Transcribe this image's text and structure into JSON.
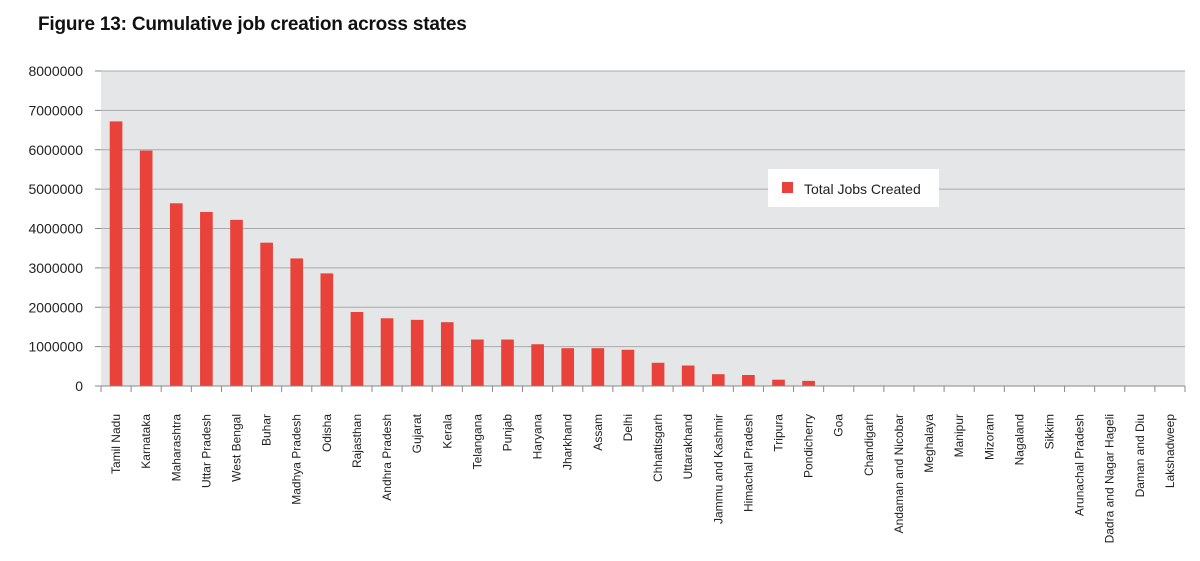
{
  "chart_data": {
    "type": "bar",
    "title": "Figure 13: Cumulative job creation across states",
    "xlabel": "",
    "ylabel": "",
    "ylim": [
      0,
      8000000
    ],
    "yticks": [
      0,
      1000000,
      2000000,
      3000000,
      4000000,
      5000000,
      6000000,
      7000000,
      8000000
    ],
    "grid": true,
    "legend_position": "right-center",
    "colors": {
      "bar": "#e8423a",
      "plot_bg": "#e5e6e8",
      "grid": "#aaaaaa"
    },
    "categories": [
      "Tamil Nadu",
      "Karnataka",
      "Maharashtra",
      "Uttar Pradesh",
      "West Bengal",
      "Buhar",
      "Madhya Pradesh",
      "Odisha",
      "Rajasthan",
      "Andhra Pradesh",
      "Gujarat",
      "Kerala",
      "Telangana",
      "Punjab",
      "Haryana",
      "Jharkhand",
      "Assam",
      "Delhi",
      "Chhattisgarh",
      "Uttarakhand",
      "Jammu and Kashmir",
      "Himachal Pradesh",
      "Tripura",
      "Pondicherry",
      "Goa",
      "Chandigarh",
      "Andaman and Nicobar",
      "Meghalaya",
      "Manipur",
      "Mizoram",
      "Nagaland",
      "Sikkim",
      "Arunachal Pradesh",
      "Dadra and Nagar Hageli",
      "Daman and Diu",
      "Lakshadweep"
    ],
    "series": [
      {
        "name": "Total Jobs Created",
        "values": [
          6720000,
          5980000,
          4640000,
          4420000,
          4220000,
          3640000,
          3240000,
          2860000,
          1880000,
          1720000,
          1680000,
          1620000,
          1180000,
          1180000,
          1060000,
          960000,
          960000,
          920000,
          590000,
          520000,
          300000,
          280000,
          160000,
          130000,
          0,
          0,
          0,
          0,
          0,
          0,
          0,
          0,
          0,
          0,
          0,
          0
        ]
      }
    ]
  }
}
